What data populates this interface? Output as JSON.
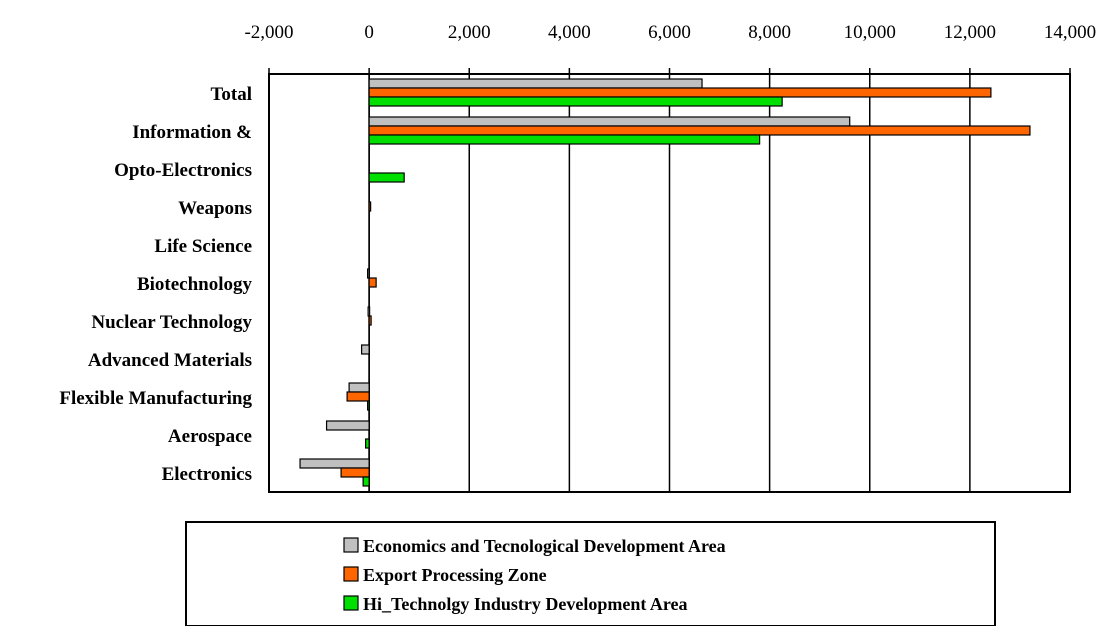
{
  "chart_data": {
    "type": "bar",
    "orientation": "horizontal",
    "categories": [
      "Total",
      "Information &",
      "Opto-Electronics",
      "Weapons",
      "Life Science",
      "Biotechnology",
      "Nuclear Technology",
      "Advanced Materials",
      "Flexible Manufacturing",
      "Aerospace",
      "Electronics"
    ],
    "series": [
      {
        "name": "Economics and Tecnological Development Area",
        "color": "#c0c0c0",
        "values": [
          6650,
          9600,
          0,
          0,
          0,
          -30,
          -20,
          -150,
          -400,
          -850,
          -1380
        ]
      },
      {
        "name": "Export Processing Zone",
        "color": "#ff6600",
        "values": [
          12420,
          13200,
          0,
          30,
          0,
          140,
          40,
          0,
          -440,
          0,
          -560
        ]
      },
      {
        "name": "Hi_Technolgy Industry Development Area",
        "color": "#00e000",
        "values": [
          8250,
          7800,
          700,
          0,
          0,
          0,
          0,
          0,
          -30,
          -70,
          -120
        ]
      }
    ],
    "xlim": [
      -2000,
      14000
    ],
    "xticks": [
      -2000,
      0,
      2000,
      4000,
      6000,
      8000,
      10000,
      12000,
      14000
    ],
    "xtick_labels": [
      "-2,000",
      "0",
      "2,000",
      "4,000",
      "6,000",
      "8,000",
      "10,000",
      "12,000",
      "14,000"
    ],
    "axis_position": "top",
    "grid": "vertical",
    "legend_position": "bottom",
    "title": "",
    "xlabel": "",
    "ylabel": ""
  }
}
